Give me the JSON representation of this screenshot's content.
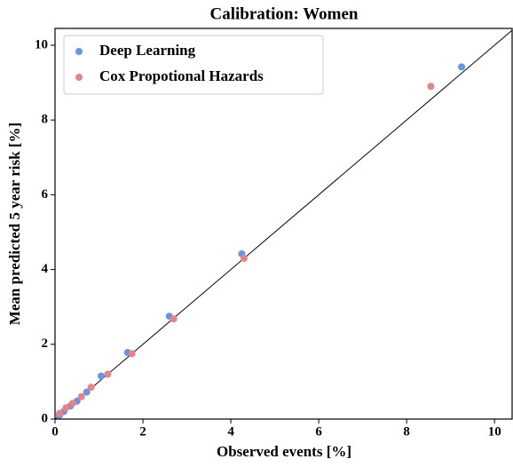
{
  "chart_data": {
    "type": "scatter",
    "title": "Calibration: Women",
    "x_label": "Observed events [%]",
    "y_label": "Mean predicted 5 year risk [%]",
    "series": [
      {
        "name": "Deep Learning",
        "color": "#6495ed",
        "x": [
          0.1,
          0.2,
          0.35,
          0.5,
          0.72,
          1.05,
          1.65,
          2.6,
          4.25,
          9.25
        ],
        "values": [
          0.1,
          0.2,
          0.35,
          0.48,
          0.72,
          1.15,
          1.78,
          2.75,
          4.42,
          9.42
        ]
      },
      {
        "name": "Cox Propotional Hazards",
        "color": "#f08080",
        "x": [
          0.1,
          0.25,
          0.4,
          0.6,
          0.82,
          1.2,
          1.75,
          2.7,
          4.3,
          8.55
        ],
        "values": [
          0.15,
          0.3,
          0.42,
          0.6,
          0.85,
          1.2,
          1.75,
          2.68,
          4.3,
          8.9
        ]
      }
    ],
    "xlim": [
      0,
      10.4
    ],
    "ylim": [
      0,
      10.45
    ],
    "xticks": [
      0,
      2,
      4,
      6,
      8,
      10
    ],
    "yticks": [
      0,
      2,
      4,
      6,
      8,
      10
    ],
    "diagonal": true,
    "legend": "upper left"
  }
}
